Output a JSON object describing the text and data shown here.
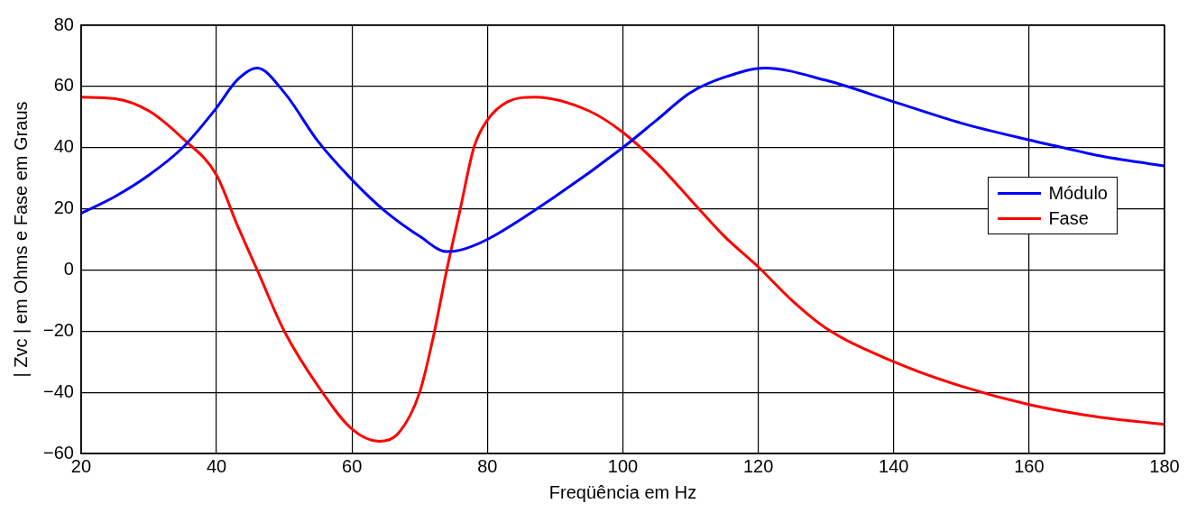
{
  "chart_data": {
    "type": "line",
    "xlabel": "Freqüência em Hz",
    "ylabel": "| Zvc | em Ohms e Fase em Graus",
    "x": [
      20,
      25,
      30,
      35,
      40,
      43,
      46,
      50,
      55,
      60,
      65,
      70,
      74,
      76,
      80,
      90,
      100,
      105,
      110,
      115,
      121,
      130,
      140,
      150,
      160,
      165,
      170,
      180
    ],
    "series": [
      {
        "name": "Módulo",
        "color": "#0000ff",
        "values": [
          18.5,
          24,
          31,
          40,
          53,
          62,
          66,
          58,
          42,
          29.5,
          19,
          11,
          6,
          6.5,
          10,
          24,
          40,
          49,
          58,
          63,
          66,
          62,
          55,
          48,
          42.5,
          40,
          37.5,
          34
        ]
      },
      {
        "name": "Fase",
        "color": "#ff0000",
        "x": [
          20,
          25,
          30,
          35,
          40,
          43,
          46,
          50,
          55,
          60,
          64,
          67,
          70,
          72,
          74,
          76,
          78,
          80,
          83,
          87,
          95,
          100,
          105,
          110,
          115,
          120,
          125,
          130,
          140,
          150,
          160,
          170,
          180
        ],
        "values": [
          56.5,
          56,
          52,
          43,
          31,
          15,
          0,
          -20,
          -38,
          -52,
          -56,
          -53,
          -40,
          -22,
          0,
          20,
          40,
          49,
          55,
          56.5,
          52,
          45,
          35,
          23,
          11,
          1,
          -10,
          -19,
          -30,
          -38,
          -44,
          -48,
          -50.5
        ]
      }
    ],
    "xlim": [
      20,
      180
    ],
    "xticks": [
      20,
      40,
      60,
      80,
      100,
      120,
      140,
      160,
      180
    ],
    "ylim": [
      -60,
      80
    ],
    "yticks": [
      -60,
      -40,
      -20,
      0,
      20,
      40,
      60,
      80
    ],
    "grid": true,
    "legend": "right",
    "marker": "none",
    "line_style": "solid"
  }
}
